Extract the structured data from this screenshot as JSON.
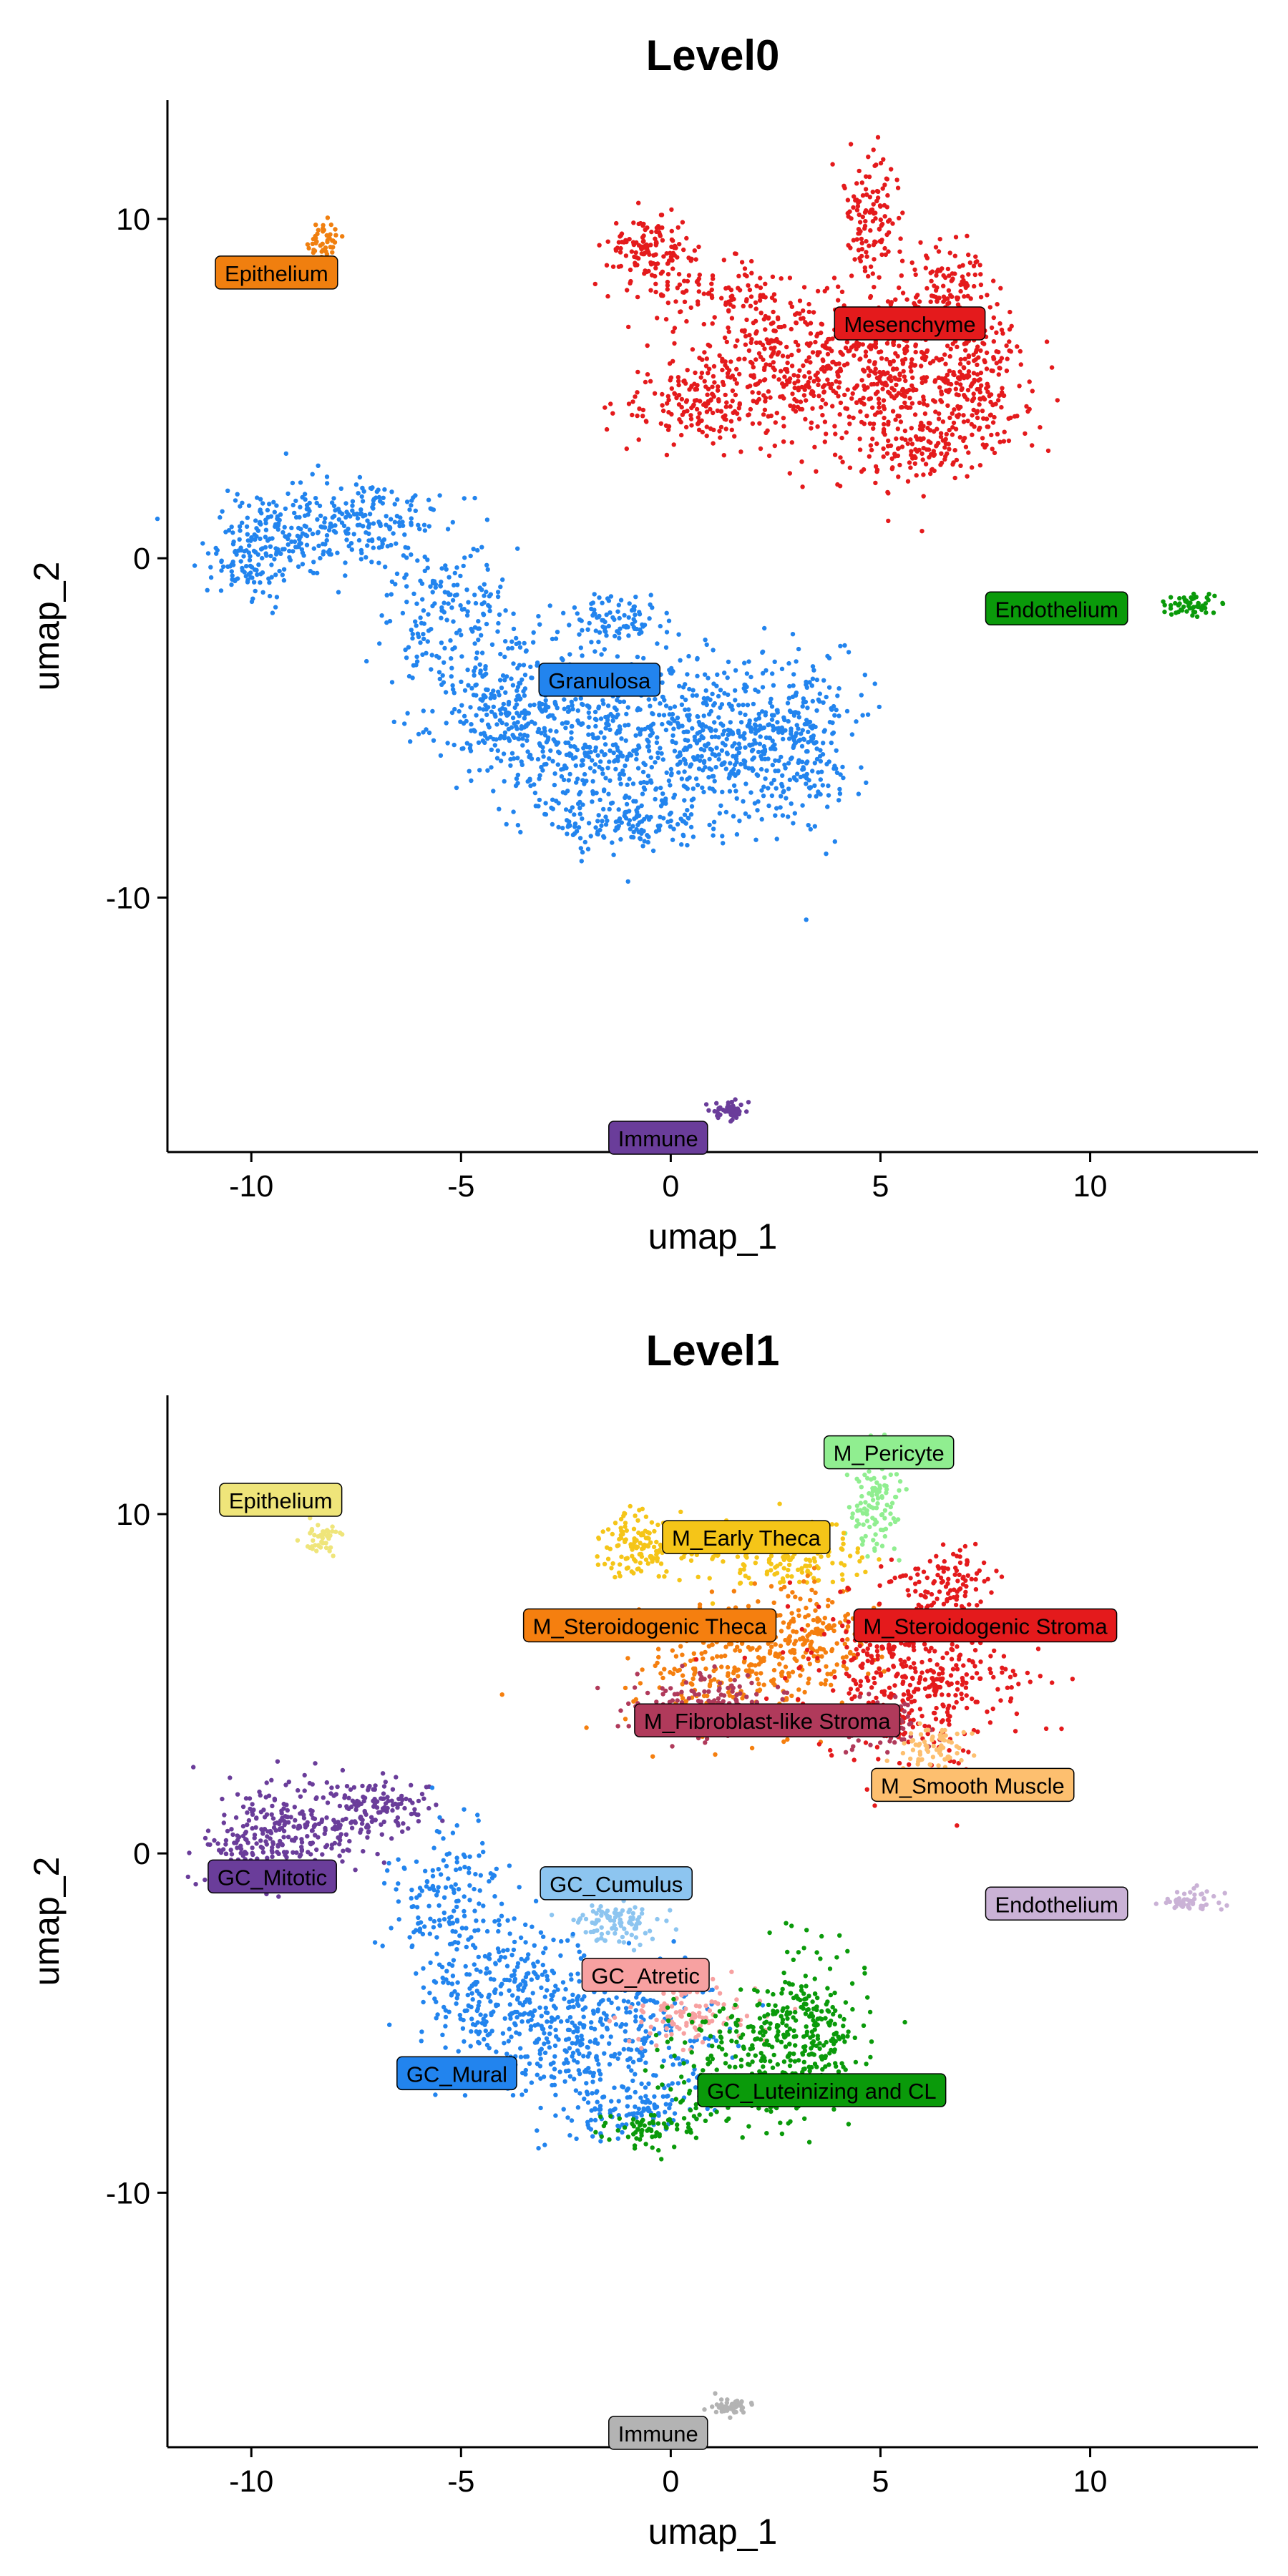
{
  "chart_data": [
    {
      "type": "scatter",
      "title": "Level0",
      "xlabel": "umap_1",
      "ylabel": "umap_2",
      "xlim": [
        -12,
        14
      ],
      "ylim": [
        -17.5,
        13.5
      ],
      "x_ticks": [
        "-10",
        "-5",
        "0",
        "5",
        "10"
      ],
      "x_tick_values": [
        -10,
        -5,
        0,
        5,
        10
      ],
      "y_ticks": [
        "10",
        "0",
        "-10"
      ],
      "y_tick_values": [
        10,
        0,
        -10
      ],
      "grid": false,
      "clusters": [
        {
          "name": "Epithelium",
          "color": "#F07F0F",
          "label_pos": [
            -9.4,
            8.4
          ],
          "blobs": [
            {
              "cx": -8.3,
              "cy": 9.3,
              "sx": 0.25,
              "sy": 0.3,
              "n": 45
            }
          ]
        },
        {
          "name": "Mesenchyme",
          "color": "#E41A1C",
          "label_pos": [
            5.7,
            6.9
          ],
          "blobs": [
            {
              "cx": -0.5,
              "cy": 9.1,
              "sx": 0.5,
              "sy": 0.5,
              "n": 140
            },
            {
              "cx": 1.2,
              "cy": 7.7,
              "sx": 0.9,
              "sy": 0.5,
              "n": 90
            },
            {
              "cx": 0.8,
              "cy": 4.6,
              "sx": 1.0,
              "sy": 0.6,
              "n": 160
            },
            {
              "cx": 2.8,
              "cy": 5.8,
              "sx": 1.3,
              "sy": 1.1,
              "n": 300
            },
            {
              "cx": 5.6,
              "cy": 5.3,
              "sx": 1.4,
              "sy": 1.4,
              "n": 520
            },
            {
              "cx": 4.8,
              "cy": 10.1,
              "sx": 0.35,
              "sy": 0.9,
              "n": 120
            },
            {
              "cx": 6.7,
              "cy": 8.1,
              "sx": 0.6,
              "sy": 0.7,
              "n": 90
            },
            {
              "cx": 7.4,
              "cy": 5.1,
              "sx": 0.5,
              "sy": 0.9,
              "n": 120
            },
            {
              "cx": 6.0,
              "cy": 3.3,
              "sx": 0.6,
              "sy": 0.4,
              "n": 80
            }
          ]
        },
        {
          "name": "Endothelium",
          "color": "#0A9A0A",
          "label_pos": [
            9.2,
            -1.5
          ],
          "blobs": [
            {
              "cx": 12.4,
              "cy": -1.4,
              "sx": 0.35,
              "sy": 0.18,
              "n": 55
            }
          ]
        },
        {
          "name": "Granulosa",
          "color": "#2284EE",
          "label_pos": [
            -1.7,
            -3.6
          ],
          "blobs": [
            {
              "cx": -10.2,
              "cy": 0.0,
              "sx": 0.5,
              "sy": 0.6,
              "n": 90
            },
            {
              "cx": -8.9,
              "cy": 0.8,
              "sx": 0.9,
              "sy": 0.7,
              "n": 200
            },
            {
              "cx": -7.0,
              "cy": 1.2,
              "sx": 0.8,
              "sy": 0.5,
              "n": 120
            },
            {
              "cx": -5.3,
              "cy": -1.5,
              "sx": 0.7,
              "sy": 1.1,
              "n": 160
            },
            {
              "cx": -4.0,
              "cy": -4.2,
              "sx": 1.0,
              "sy": 1.0,
              "n": 260
            },
            {
              "cx": -1.6,
              "cy": -5.4,
              "sx": 1.4,
              "sy": 1.2,
              "n": 420
            },
            {
              "cx": 1.2,
              "cy": -5.3,
              "sx": 1.2,
              "sy": 1.1,
              "n": 380
            },
            {
              "cx": 3.2,
              "cy": -5.6,
              "sx": 0.7,
              "sy": 1.3,
              "n": 220
            },
            {
              "cx": -1.3,
              "cy": -1.8,
              "sx": 0.6,
              "sy": 0.3,
              "n": 90
            },
            {
              "cx": -1.0,
              "cy": -7.8,
              "sx": 1.3,
              "sy": 0.4,
              "n": 140
            }
          ]
        },
        {
          "name": "Immune",
          "color": "#6A3D9A",
          "label_pos": [
            -0.3,
            -17.1
          ],
          "blobs": [
            {
              "cx": 1.4,
              "cy": -16.3,
              "sx": 0.25,
              "sy": 0.15,
              "n": 50
            }
          ]
        }
      ]
    },
    {
      "type": "scatter",
      "title": "Level1",
      "xlabel": "umap_1",
      "ylabel": "umap_2",
      "xlim": [
        -12,
        14
      ],
      "ylim": [
        -17.5,
        13.5
      ],
      "x_ticks": [
        "-10",
        "-5",
        "0",
        "5",
        "10"
      ],
      "x_tick_values": [
        -10,
        -5,
        0,
        5,
        10
      ],
      "y_ticks": [
        "10",
        "0",
        "-10"
      ],
      "y_tick_values": [
        10,
        0,
        -10
      ],
      "grid": false,
      "clusters": [
        {
          "name": "Epithelium",
          "color": "#EFE57A",
          "label_pos": [
            -9.3,
            10.4
          ],
          "blobs": [
            {
              "cx": -8.3,
              "cy": 9.3,
              "sx": 0.25,
              "sy": 0.3,
              "n": 45
            }
          ]
        },
        {
          "name": "M_Pericyte",
          "color": "#90EE90",
          "label_pos": [
            5.2,
            11.8
          ],
          "blobs": [
            {
              "cx": 4.9,
              "cy": 10.2,
              "sx": 0.3,
              "sy": 0.8,
              "n": 110
            }
          ]
        },
        {
          "name": "M_Early Theca",
          "color": "#F5C518",
          "label_pos": [
            1.8,
            9.3
          ],
          "blobs": [
            {
              "cx": -0.6,
              "cy": 9.1,
              "sx": 0.5,
              "sy": 0.5,
              "n": 150
            },
            {
              "cx": 2.6,
              "cy": 8.7,
              "sx": 1.0,
              "sy": 0.5,
              "n": 170
            }
          ]
        },
        {
          "name": "M_Steroidogenic Theca",
          "color": "#F57F0F",
          "label_pos": [
            -0.5,
            6.7
          ],
          "blobs": [
            {
              "cx": 1.7,
              "cy": 5.5,
              "sx": 1.3,
              "sy": 0.9,
              "n": 320
            },
            {
              "cx": 3.3,
              "cy": 6.5,
              "sx": 0.7,
              "sy": 0.7,
              "n": 120
            }
          ]
        },
        {
          "name": "M_Steroidogenic Stroma",
          "color": "#E41A1C",
          "label_pos": [
            7.5,
            6.7
          ],
          "blobs": [
            {
              "cx": 5.8,
              "cy": 5.2,
              "sx": 1.3,
              "sy": 1.3,
              "n": 460
            },
            {
              "cx": 6.6,
              "cy": 8.0,
              "sx": 0.6,
              "sy": 0.6,
              "n": 90
            }
          ]
        },
        {
          "name": "M_Fibroblast-like Stroma",
          "color": "#B03A5B",
          "label_pos": [
            2.3,
            3.9
          ],
          "blobs": [
            {
              "cx": 0.8,
              "cy": 4.4,
              "sx": 1.0,
              "sy": 0.5,
              "n": 150
            },
            {
              "cx": 5.0,
              "cy": 3.8,
              "sx": 0.8,
              "sy": 0.4,
              "n": 80
            }
          ]
        },
        {
          "name": "M_Smooth Muscle",
          "color": "#FDBF6F",
          "label_pos": [
            7.2,
            2.0
          ],
          "blobs": [
            {
              "cx": 6.3,
              "cy": 3.1,
              "sx": 0.4,
              "sy": 0.35,
              "n": 70
            }
          ]
        },
        {
          "name": "Endothelium",
          "color": "#CAB2D6",
          "label_pos": [
            9.2,
            -1.5
          ],
          "blobs": [
            {
              "cx": 12.4,
              "cy": -1.4,
              "sx": 0.35,
              "sy": 0.18,
              "n": 55
            }
          ]
        },
        {
          "name": "GC_Mitotic",
          "color": "#6A3D9A",
          "label_pos": [
            -9.5,
            -0.7
          ],
          "blobs": [
            {
              "cx": -10.2,
              "cy": 0.0,
              "sx": 0.5,
              "sy": 0.6,
              "n": 90
            },
            {
              "cx": -8.9,
              "cy": 0.8,
              "sx": 0.9,
              "sy": 0.7,
              "n": 220
            },
            {
              "cx": -7.0,
              "cy": 1.3,
              "sx": 0.7,
              "sy": 0.5,
              "n": 110
            }
          ]
        },
        {
          "name": "GC_Cumulus",
          "color": "#8DC5F0",
          "label_pos": [
            -1.3,
            -0.9
          ],
          "blobs": [
            {
              "cx": -1.3,
              "cy": -2.0,
              "sx": 0.6,
              "sy": 0.35,
              "n": 100
            }
          ]
        },
        {
          "name": "GC_Mural",
          "color": "#2284EE",
          "label_pos": [
            -5.1,
            -6.5
          ],
          "blobs": [
            {
              "cx": -5.3,
              "cy": -1.5,
              "sx": 0.7,
              "sy": 1.1,
              "n": 160
            },
            {
              "cx": -4.0,
              "cy": -4.2,
              "sx": 1.0,
              "sy": 1.0,
              "n": 250
            },
            {
              "cx": -1.6,
              "cy": -5.5,
              "sx": 1.3,
              "sy": 1.1,
              "n": 380
            },
            {
              "cx": -1.0,
              "cy": -7.6,
              "sx": 1.0,
              "sy": 0.4,
              "n": 100
            }
          ]
        },
        {
          "name": "GC_Atretic",
          "color": "#F7A1A1",
          "label_pos": [
            -0.6,
            -3.6
          ],
          "blobs": [
            {
              "cx": 0.5,
              "cy": -4.8,
              "sx": 0.9,
              "sy": 0.5,
              "n": 110
            }
          ]
        },
        {
          "name": "GC_Luteinizing and CL",
          "color": "#0A9A0A",
          "label_pos": [
            3.6,
            -7.0
          ],
          "blobs": [
            {
              "cx": 2.0,
              "cy": -6.2,
              "sx": 1.0,
              "sy": 1.0,
              "n": 260
            },
            {
              "cx": 3.4,
              "cy": -5.0,
              "sx": 0.6,
              "sy": 1.1,
              "n": 200
            },
            {
              "cx": -0.5,
              "cy": -8.1,
              "sx": 0.7,
              "sy": 0.25,
              "n": 70
            }
          ]
        },
        {
          "name": "Immune",
          "color": "#B3B3B3",
          "label_pos": [
            -0.3,
            -17.1
          ],
          "blobs": [
            {
              "cx": 1.4,
              "cy": -16.3,
              "sx": 0.25,
              "sy": 0.15,
              "n": 50
            }
          ]
        }
      ]
    }
  ]
}
